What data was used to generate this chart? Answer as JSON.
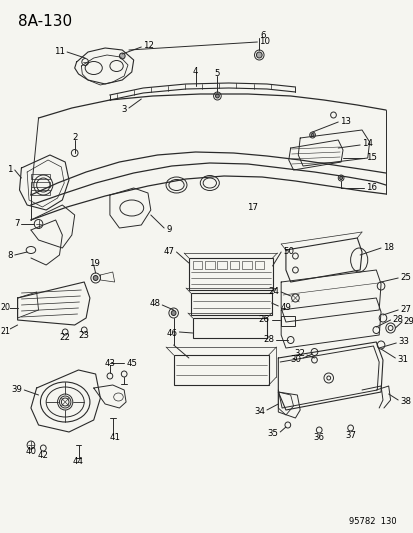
{
  "title": "8A-130",
  "footer": "95782  130",
  "bg_color": "#f5f5f0",
  "lc": "#2a2a2a",
  "lw": 0.7
}
